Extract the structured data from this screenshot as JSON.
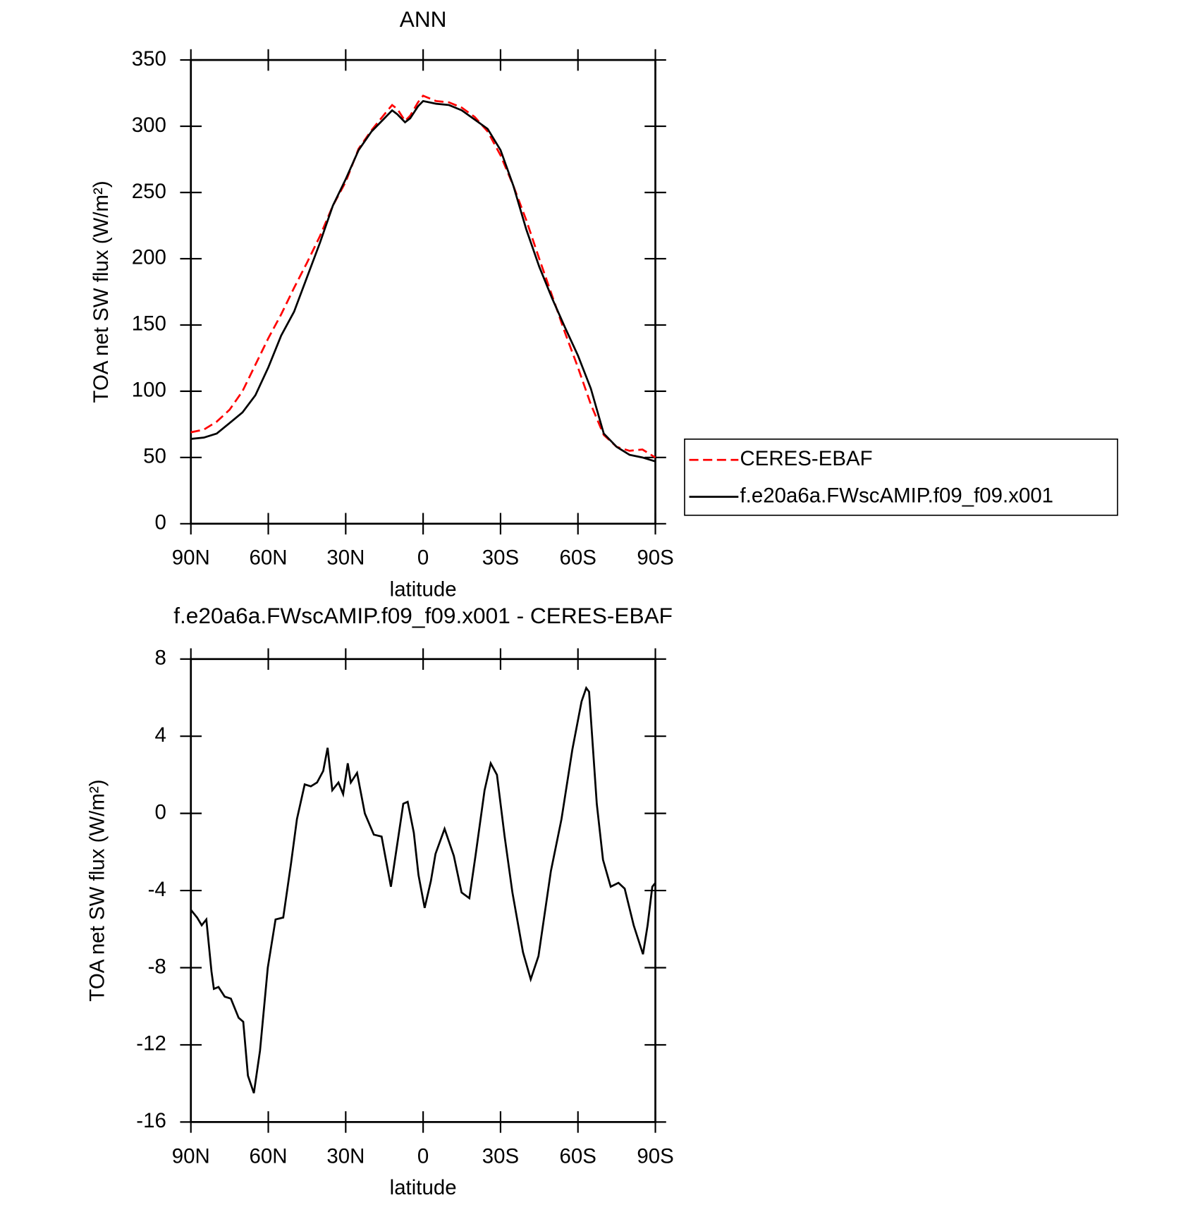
{
  "chart_data": [
    {
      "type": "line",
      "title": "ANN",
      "xlabel": "latitude",
      "ylabel": "TOA net SW flux (W/m²)",
      "x": [
        90,
        85,
        80,
        75,
        70,
        65,
        60,
        55,
        50,
        45,
        40,
        35,
        30,
        25,
        20,
        15,
        12,
        10,
        7,
        5,
        2,
        0,
        -5,
        -10,
        -15,
        -20,
        -25,
        -30,
        -35,
        -40,
        -45,
        -50,
        -55,
        -60,
        -65,
        -70,
        -75,
        -80,
        -85,
        -90
      ],
      "series": [
        {
          "name": "CERES-EBAF",
          "color": "#ff0000",
          "line_style": "dashed",
          "values": [
            69,
            71,
            77,
            86,
            100,
            120,
            140,
            158,
            178,
            197,
            217,
            240,
            258,
            283,
            297,
            309,
            316,
            313,
            304,
            308,
            318,
            323,
            319,
            318,
            314,
            307,
            296,
            278,
            255,
            229,
            200,
            172,
            144,
            118,
            90,
            67,
            58,
            55,
            56,
            50
          ]
        },
        {
          "name": "f.e20a6a.FWscAMIP.f09_f09.x001",
          "color": "#000000",
          "line_style": "solid",
          "values": [
            64,
            65,
            68,
            76,
            84,
            97,
            118,
            142,
            160,
            186,
            212,
            240,
            260,
            282,
            296,
            306,
            312,
            309,
            303,
            306,
            315,
            319,
            317,
            316,
            312,
            305,
            298,
            282,
            255,
            222,
            194,
            170,
            148,
            127,
            102,
            68,
            58,
            52,
            50,
            47
          ]
        }
      ],
      "xlim": [
        90,
        -90
      ],
      "xticks": [
        {
          "value": 90,
          "label": "90N"
        },
        {
          "value": 60,
          "label": "60N"
        },
        {
          "value": 30,
          "label": "30N"
        },
        0,
        {
          "value": -30,
          "label": "30S"
        },
        {
          "value": -60,
          "label": "60S"
        },
        {
          "value": -90,
          "label": "90S"
        }
      ],
      "ylim": [
        0,
        350
      ],
      "yticks": [
        0,
        50,
        100,
        150,
        200,
        250,
        300,
        350
      ],
      "legend": "right"
    },
    {
      "type": "line",
      "title": "f.e20a6a.FWscAMIP.f09_f09.x001 - CERES-EBAF",
      "xlabel": "latitude",
      "ylabel": "TOA net SW flux (W/m²)",
      "x": [
        90,
        87.6,
        85.8,
        84.0,
        82.0,
        81.1,
        79.3,
        76.9,
        74.5,
        71.5,
        69.7,
        67.9,
        65.6,
        63.2,
        60.2,
        57.2,
        54.2,
        51.2,
        48.9,
        45.9,
        43.5,
        41.1,
        38.7,
        37.0,
        35.2,
        32.8,
        31.0,
        29.2,
        28.0,
        25.6,
        22.6,
        19.1,
        16.1,
        12.5,
        7.7,
        6.0,
        3.6,
        1.8,
        -0.6,
        -3.0,
        -4.8,
        -8.3,
        -11.9,
        -14.9,
        -17.9,
        -20.3,
        -23.8,
        -26.2,
        -28.6,
        -31.6,
        -34.6,
        -38.7,
        -41.7,
        -44.7,
        -49.5,
        -53.6,
        -57.8,
        -61.4,
        -63.2,
        -64.3,
        -67.3,
        -69.7,
        -72.7,
        -75.7,
        -78.1,
        -81.6,
        -85.2,
        -87.0,
        -88.8,
        -90
      ],
      "series": [
        {
          "color": "#000000",
          "line_style": "solid",
          "values": [
            -5,
            -5.4,
            -5.8,
            -5.5,
            -8.2,
            -9.1,
            -9.0,
            -9.5,
            -9.6,
            -10.6,
            -10.8,
            -13.6,
            -14.5,
            -12.3,
            -8,
            -5.5,
            -5.4,
            -2.6,
            -0.3,
            1.5,
            1.4,
            1.6,
            2.2,
            3.4,
            1.2,
            1.6,
            1.0,
            2.6,
            1.6,
            2.1,
            0,
            -1.1,
            -1.2,
            -3.8,
            0.5,
            0.6,
            -1,
            -3.2,
            -4.9,
            -3.5,
            -2.1,
            -0.8,
            -2.2,
            -4.1,
            -4.4,
            -2.2,
            1.2,
            2.6,
            2.0,
            -1.2,
            -4.1,
            -7.2,
            -8.6,
            -7.4,
            -3.0,
            -0.3,
            3.3,
            5.8,
            6.5,
            6.3,
            0.5,
            -2.4,
            -3.8,
            -3.6,
            -3.9,
            -5.8,
            -7.3,
            -5.8,
            -3.8,
            -3.6
          ]
        }
      ],
      "xlim": [
        90,
        -90
      ],
      "xticks": [
        {
          "value": 90,
          "label": "90N"
        },
        {
          "value": 60,
          "label": "60N"
        },
        {
          "value": 30,
          "label": "30N"
        },
        0,
        {
          "value": -30,
          "label": "30S"
        },
        {
          "value": -60,
          "label": "60S"
        },
        {
          "value": -90,
          "label": "90S"
        }
      ],
      "ylim": [
        -16,
        8
      ],
      "yticks": [
        -16,
        -12,
        -8,
        -4,
        0,
        4,
        8
      ]
    }
  ]
}
